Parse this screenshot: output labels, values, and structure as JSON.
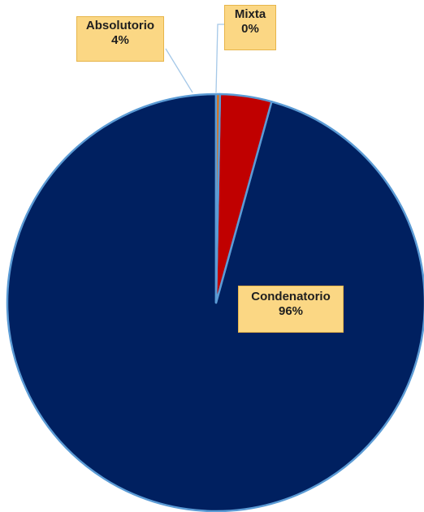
{
  "chart_data": {
    "type": "pie",
    "title": "",
    "slices": [
      {
        "label": "Condenatorio",
        "value": 96,
        "display": "96%",
        "color": "#002060"
      },
      {
        "label": "Absolutorio",
        "value": 4,
        "display": "4%",
        "color": "#c00000"
      },
      {
        "label": "Mixta",
        "value": 0.3,
        "display": "0%",
        "color": "#e36c09"
      }
    ],
    "slice_border_color": "#5b9bd5",
    "label_fill_color": "#fbd784",
    "leader_line_color": "#a5c8e8"
  }
}
